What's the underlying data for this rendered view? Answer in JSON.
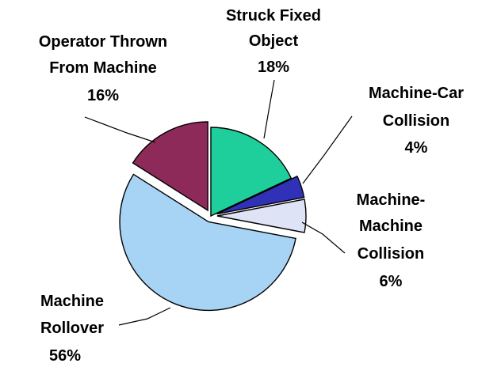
{
  "chart_data": {
    "type": "pie",
    "title": "",
    "slices": [
      {
        "label_lines": [
          "Struck Fixed",
          "Object"
        ],
        "percent_label": "18%",
        "value": 18,
        "color": "#1fcf9b",
        "exploded": false
      },
      {
        "label_lines": [
          "Machine-Car",
          "Collision"
        ],
        "percent_label": "4%",
        "value": 4,
        "color": "#3131b8",
        "exploded": true
      },
      {
        "label_lines": [
          "Machine-",
          "Machine",
          "Collision"
        ],
        "percent_label": "6%",
        "value": 6,
        "color": "#dfe3f6",
        "exploded": true
      },
      {
        "label_lines": [
          "Machine",
          "Rollover"
        ],
        "percent_label": "56%",
        "value": 56,
        "color": "#a7d3f5",
        "exploded": true
      },
      {
        "label_lines": [
          "Operator Thrown",
          "From Machine"
        ],
        "percent_label": "16%",
        "value": 16,
        "color": "#8d2a59",
        "exploded": true
      }
    ]
  }
}
